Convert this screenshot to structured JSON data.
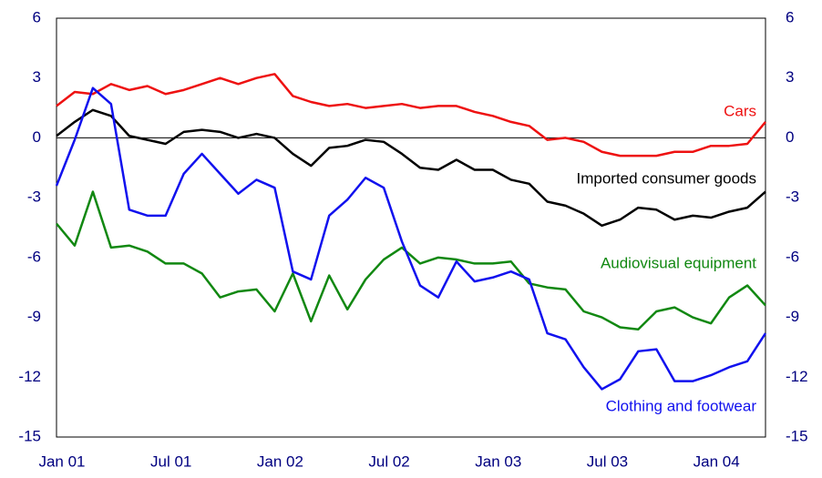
{
  "chart_data": {
    "type": "line",
    "categories": [
      "Jan 01",
      null,
      null,
      null,
      null,
      null,
      "Jul 01",
      null,
      null,
      null,
      null,
      null,
      "Jan 02",
      null,
      null,
      null,
      null,
      null,
      "Jul 02",
      null,
      null,
      null,
      null,
      null,
      "Jan 03",
      null,
      null,
      null,
      null,
      null,
      "Jul 03",
      null,
      null,
      null,
      null,
      null,
      "Jan 04",
      null,
      null,
      null
    ],
    "series": [
      {
        "name": "Cars",
        "color": "#ee1111",
        "values": [
          1.6,
          2.3,
          2.2,
          2.7,
          2.4,
          2.6,
          2.2,
          2.4,
          2.7,
          3.0,
          2.7,
          3.0,
          3.2,
          2.1,
          1.8,
          1.6,
          1.7,
          1.5,
          1.6,
          1.7,
          1.5,
          1.6,
          1.6,
          1.3,
          1.1,
          0.8,
          0.6,
          -0.1,
          0.0,
          -0.2,
          -0.7,
          -0.9,
          -0.9,
          -0.9,
          -0.7,
          -0.7,
          -0.4,
          -0.4,
          -0.3,
          0.8
        ]
      },
      {
        "name": "Imported consumer goods",
        "color": "#000000",
        "values": [
          0.1,
          0.8,
          1.4,
          1.1,
          0.1,
          -0.1,
          -0.3,
          0.3,
          0.4,
          0.3,
          0.0,
          0.2,
          0.0,
          -0.8,
          -1.4,
          -0.5,
          -0.4,
          -0.1,
          -0.2,
          -0.8,
          -1.5,
          -1.6,
          -1.1,
          -1.6,
          -1.6,
          -2.1,
          -2.3,
          -3.2,
          -3.4,
          -3.8,
          -4.4,
          -4.1,
          -3.5,
          -3.6,
          -4.1,
          -3.9,
          -4.0,
          -3.7,
          -3.5,
          -2.7
        ]
      },
      {
        "name": "Audiovisual equipment",
        "color": "#118811",
        "values": [
          -4.3,
          -5.4,
          -2.7,
          -5.5,
          -5.4,
          -5.7,
          -6.3,
          -6.3,
          -6.8,
          -8.0,
          -7.7,
          -7.6,
          -8.7,
          -6.8,
          -9.2,
          -6.9,
          -8.6,
          -7.1,
          -6.1,
          -5.5,
          -6.3,
          -6.0,
          -6.1,
          -6.3,
          -6.3,
          -6.2,
          -7.3,
          -7.5,
          -7.6,
          -8.7,
          -9.0,
          -9.5,
          -9.6,
          -8.7,
          -8.5,
          -9.0,
          -9.3,
          -8.0,
          -7.4,
          -8.4
        ]
      },
      {
        "name": "Clothing and footwear",
        "color": "#1111ee",
        "values": [
          -2.4,
          -0.1,
          2.5,
          1.7,
          -3.6,
          -3.9,
          -3.9,
          -1.8,
          -0.8,
          -1.8,
          -2.8,
          -2.1,
          -2.5,
          -6.7,
          -7.1,
          -3.9,
          -3.1,
          -2.0,
          -2.5,
          -5.2,
          -7.4,
          -8.0,
          -6.2,
          -7.2,
          -7.0,
          -6.7,
          -7.1,
          -9.8,
          -10.1,
          -11.5,
          -12.6,
          -12.1,
          -10.7,
          -10.6,
          -12.2,
          -12.2,
          -11.9,
          -11.5,
          -11.2,
          -9.8
        ]
      }
    ],
    "ylim": [
      -15,
      6
    ],
    "yticks": [
      -15,
      -12,
      -9,
      -6,
      -3,
      0,
      3,
      6
    ],
    "y2lim": [
      -15,
      6
    ],
    "y2ticks": [
      -15,
      -12,
      -9,
      -6,
      -3,
      0,
      3,
      6
    ],
    "grid": false
  }
}
